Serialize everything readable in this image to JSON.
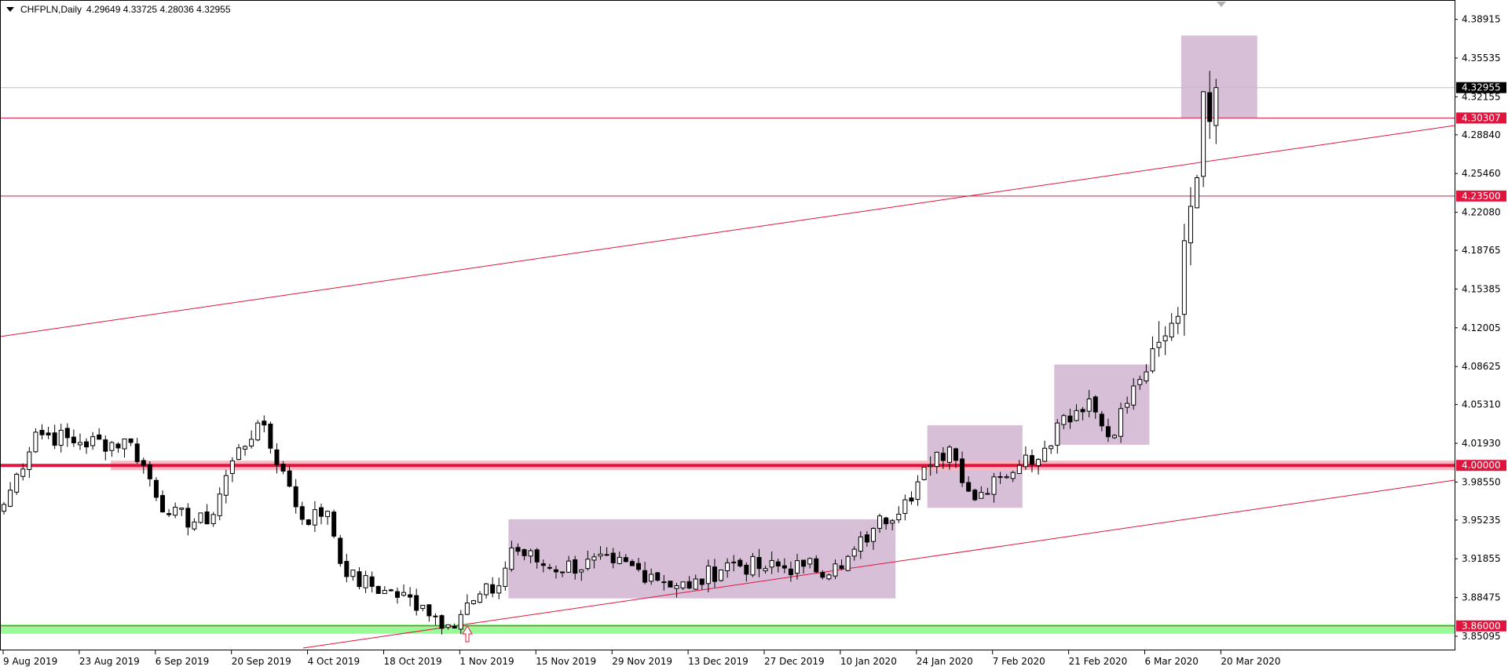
{
  "header": {
    "symbol": "CHFPLN,Daily",
    "ohlc": "4.29649 4.33725 4.28036 4.32955"
  },
  "price_axis": {
    "ticks": [
      "4.38915",
      "4.35535",
      "4.32155",
      "4.28840",
      "4.25460",
      "4.22080",
      "4.18765",
      "4.15385",
      "4.12005",
      "4.08625",
      "4.05310",
      "4.01930",
      "3.98550",
      "3.95235",
      "3.91855",
      "3.88475",
      "3.85095"
    ],
    "current_price": "4.32955",
    "levels": [
      {
        "label": "4.30307",
        "style": "thin"
      },
      {
        "label": "4.23500",
        "style": "thin"
      },
      {
        "label": "4.00000",
        "style": "thick-band"
      },
      {
        "label": "3.86000",
        "style": "green-band"
      }
    ]
  },
  "time_axis": {
    "labels": [
      "9 Aug 2019",
      "23 Aug 2019",
      "6 Sep 2019",
      "20 Sep 2019",
      "4 Oct 2019",
      "18 Oct 2019",
      "1 Nov 2019",
      "15 Nov 2019",
      "29 Nov 2019",
      "13 Dec 2019",
      "27 Dec 2019",
      "10 Jan 2020",
      "24 Jan 2020",
      "7 Feb 2020",
      "21 Feb 2020",
      "6 Mar 2020",
      "20 Mar 2020"
    ]
  },
  "colors": {
    "level_line": "#e0143c",
    "band_pink": "#ffb6c1",
    "band_green": "#98fb98",
    "zone": "#d8bfd8",
    "current_price_line": "#c0c0c0",
    "bull_body": "#ffffff",
    "bear_body": "#000000"
  },
  "chart_data": {
    "type": "candlestick",
    "symbol": "CHFPLN",
    "timeframe": "Daily",
    "ylim": [
      3.85095,
      4.38915
    ],
    "approx_closes": [
      {
        "date": "2019-08-09",
        "close": 3.966
      },
      {
        "date": "2019-08-15",
        "close": 4.029
      },
      {
        "date": "2019-08-23",
        "close": 4.02
      },
      {
        "date": "2019-09-02",
        "close": 4.02
      },
      {
        "date": "2019-09-09",
        "close": 3.957
      },
      {
        "date": "2019-09-16",
        "close": 3.949
      },
      {
        "date": "2019-09-20",
        "close": 4.004
      },
      {
        "date": "2019-09-25",
        "close": 4.037
      },
      {
        "date": "2019-09-30",
        "close": 3.995
      },
      {
        "date": "2019-10-03",
        "close": 3.953
      },
      {
        "date": "2019-10-08",
        "close": 3.96
      },
      {
        "date": "2019-10-11",
        "close": 3.903
      },
      {
        "date": "2019-10-18",
        "close": 3.891
      },
      {
        "date": "2019-10-25",
        "close": 3.878
      },
      {
        "date": "2019-10-30",
        "close": 3.861
      },
      {
        "date": "2019-11-04",
        "close": 3.882
      },
      {
        "date": "2019-11-08",
        "close": 3.895
      },
      {
        "date": "2019-11-11",
        "close": 3.928
      },
      {
        "date": "2019-11-18",
        "close": 3.911
      },
      {
        "date": "2019-11-29",
        "close": 3.915
      },
      {
        "date": "2019-12-06",
        "close": 3.905
      },
      {
        "date": "2019-12-13",
        "close": 3.893
      },
      {
        "date": "2019-12-20",
        "close": 3.915
      },
      {
        "date": "2019-12-27",
        "close": 3.91
      },
      {
        "date": "2020-01-03",
        "close": 3.912
      },
      {
        "date": "2020-01-10",
        "close": 3.91
      },
      {
        "date": "2020-01-16",
        "close": 3.945
      },
      {
        "date": "2020-01-22",
        "close": 3.97
      },
      {
        "date": "2020-01-27",
        "close": 4.0
      },
      {
        "date": "2020-01-30",
        "close": 4.016
      },
      {
        "date": "2020-02-04",
        "close": 3.97
      },
      {
        "date": "2020-02-07",
        "close": 3.99
      },
      {
        "date": "2020-02-12",
        "close": 4.0
      },
      {
        "date": "2020-02-17",
        "close": 4.015
      },
      {
        "date": "2020-02-19",
        "close": 4.037
      },
      {
        "date": "2020-02-25",
        "close": 4.058
      },
      {
        "date": "2020-02-28",
        "close": 4.025
      },
      {
        "date": "2020-03-05",
        "close": 4.075
      },
      {
        "date": "2020-03-10",
        "close": 4.113
      },
      {
        "date": "2020-03-12",
        "close": 4.13
      },
      {
        "date": "2020-03-13",
        "close": 4.196
      },
      {
        "date": "2020-03-15",
        "close": 4.226
      },
      {
        "date": "2020-03-16",
        "close": 4.251
      },
      {
        "date": "2020-03-17",
        "close": 4.326
      },
      {
        "date": "2020-03-18",
        "close": 4.3
      }
    ],
    "last_bar": {
      "date": "2020-03-19",
      "open": 4.29649,
      "high": 4.33725,
      "low": 4.28036,
      "close": 4.32955
    },
    "zones": [
      {
        "from": "2019-11-11",
        "to": "2020-01-20",
        "high": 3.953,
        "low": 3.884
      },
      {
        "from": "2020-01-27",
        "to": "2020-02-12",
        "high": 4.035,
        "low": 3.963
      },
      {
        "from": "2020-02-19",
        "to": "2020-03-06",
        "high": 4.088,
        "low": 4.018
      },
      {
        "from": "2020-03-13",
        "to": "2020-03-26",
        "high": 4.375,
        "low": 4.30307
      }
    ]
  }
}
